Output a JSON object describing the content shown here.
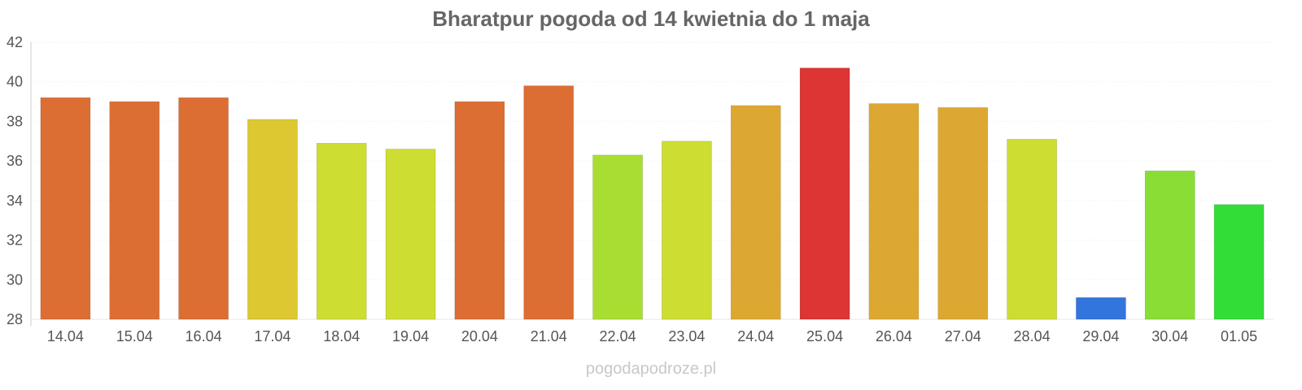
{
  "chart_data": {
    "type": "bar",
    "title": "Bharatpur pogoda od 14 kwietnia do 1 maja",
    "xlabel": "",
    "ylabel": "",
    "categories": [
      "14.04",
      "15.04",
      "16.04",
      "17.04",
      "18.04",
      "19.04",
      "20.04",
      "21.04",
      "22.04",
      "23.04",
      "24.04",
      "25.04",
      "26.04",
      "27.04",
      "28.04",
      "29.04",
      "30.04",
      "01.05"
    ],
    "values": [
      39.2,
      39.0,
      39.2,
      38.1,
      36.9,
      36.6,
      39.0,
      39.8,
      36.3,
      37.0,
      38.8,
      40.7,
      38.9,
      38.7,
      37.1,
      29.1,
      35.5,
      33.8
    ],
    "colors": [
      "#dd6e33",
      "#dd6e33",
      "#dd6e33",
      "#ddc832",
      "#cddd32",
      "#cddd32",
      "#dd6e33",
      "#dd6e33",
      "#a9dd32",
      "#cddd32",
      "#dda832",
      "#dd3434",
      "#dda832",
      "#dda832",
      "#cddd32",
      "#3275dd",
      "#89dd35",
      "#32dd38"
    ],
    "ylim": [
      28,
      42
    ],
    "yticks": [
      28,
      30,
      32,
      34,
      36,
      38,
      40,
      42
    ],
    "grid": true,
    "legend": "none"
  },
  "footer": {
    "source": "pogodapodroze.pl"
  }
}
